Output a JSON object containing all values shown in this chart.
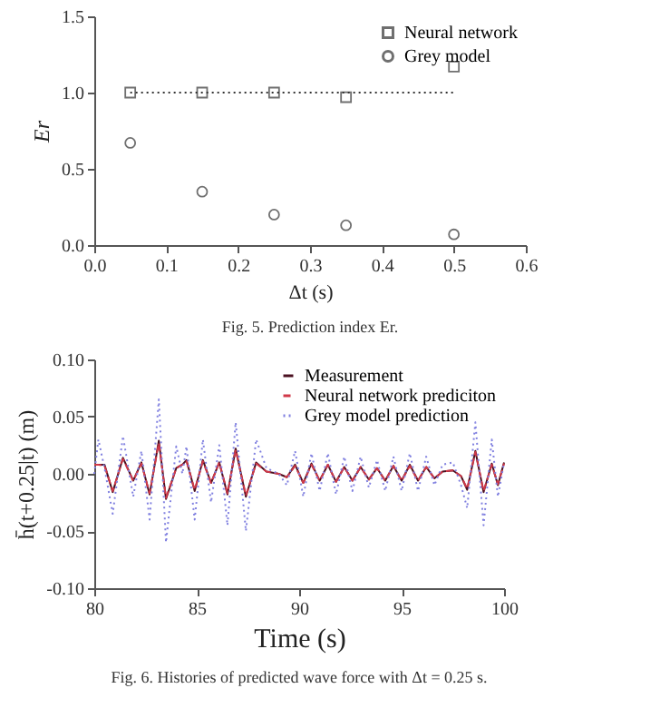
{
  "chart_data": [
    {
      "type": "scatter",
      "xlabel": "Δt (s)",
      "ylabel": "Er",
      "annotations": [
        "Fig. 5. Prediction index Er."
      ],
      "x": [
        0.05,
        0.15,
        0.25,
        0.35,
        0.5
      ],
      "xlim": [
        0,
        0.6
      ],
      "xticks": [
        {
          "value": 0,
          "label": "0.0"
        },
        0.1,
        0.2,
        0.3,
        0.4,
        0.5,
        0.6
      ],
      "ylim": [
        0,
        1.5
      ],
      "yticks": [
        {
          "value": 0,
          "label": "0.0"
        },
        0.5,
        {
          "value": 1,
          "label": "1.0"
        },
        1.5
      ],
      "legend": "top right",
      "series": [
        {
          "name": "Neural network",
          "color": "#333333",
          "marker": "square",
          "values": [
            1.0,
            1.0,
            1.0,
            0.97,
            1.17
          ]
        },
        {
          "name": "Grey model",
          "color": "#333333",
          "marker": "circle",
          "values": [
            0.67,
            0.35,
            0.2,
            0.13,
            0.07
          ]
        },
        {
          "type": "line",
          "color": "#333333",
          "line_style": "dotted",
          "x": [
            0.05,
            0.5
          ],
          "values": [
            1.0,
            1.0
          ]
        }
      ]
    },
    {
      "type": "line",
      "xlabel": "Time (s)",
      "ylabel": "h̄(t+0.25|t) (m)",
      "annotations": [
        "Fig. 6. Histories of predicted wave force with Δt = 0.25 s."
      ],
      "x": [
        80.0,
        80.2,
        80.5,
        80.9,
        81.4,
        81.9,
        82.3,
        82.7,
        83.15,
        83.5,
        84.0,
        84.3,
        84.5,
        84.9,
        85.3,
        85.7,
        86.1,
        86.5,
        86.9,
        87.4,
        87.9,
        88.4,
        89.0,
        89.4,
        89.8,
        90.2,
        90.6,
        91.0,
        91.4,
        91.8,
        92.2,
        92.6,
        93.0,
        93.4,
        93.8,
        94.2,
        94.6,
        95.0,
        95.4,
        95.8,
        96.2,
        96.6,
        97.0,
        97.5,
        97.9,
        98.2,
        98.6,
        99.0,
        99.4,
        99.7,
        100.0
      ],
      "xlim": [
        80,
        100
      ],
      "xticks": [
        80,
        85,
        90,
        95,
        100
      ],
      "ylim": [
        -0.1,
        0.1
      ],
      "yticks": [
        {
          "value": -0.1,
          "label": "-0.10"
        },
        -0.05,
        {
          "value": 0,
          "label": "0.00"
        },
        0.05,
        {
          "value": 0.1,
          "label": "0.10"
        }
      ],
      "legend": "top right",
      "series": [
        {
          "name": "Measurement",
          "color": "#4a1020",
          "line_style": "solid",
          "values": [
            0.008,
            0.008,
            0.008,
            -0.016,
            0.014,
            -0.006,
            0.01,
            -0.018,
            0.029,
            -0.022,
            0.005,
            0.008,
            0.012,
            -0.015,
            0.012,
            -0.008,
            0.01,
            -0.018,
            0.022,
            -0.02,
            0.01,
            0.002,
            0.0,
            -0.003,
            0.008,
            -0.008,
            0.009,
            -0.006,
            0.008,
            -0.007,
            0.006,
            -0.006,
            0.006,
            -0.005,
            0.005,
            -0.006,
            0.007,
            -0.006,
            0.008,
            -0.006,
            0.006,
            -0.004,
            0.002,
            0.003,
            -0.002,
            -0.014,
            0.02,
            -0.016,
            0.009,
            -0.01,
            0.01
          ]
        },
        {
          "name": "Neural network prediciton",
          "color": "#d03848",
          "line_style": "dashed",
          "values": [
            0.008,
            0.008,
            0.007,
            -0.015,
            0.013,
            -0.006,
            0.009,
            -0.017,
            0.027,
            -0.021,
            0.005,
            0.008,
            0.011,
            -0.014,
            0.011,
            -0.008,
            0.01,
            -0.017,
            0.021,
            -0.019,
            0.009,
            0.002,
            0.0,
            -0.003,
            0.007,
            -0.008,
            0.008,
            -0.006,
            0.008,
            -0.007,
            0.006,
            -0.006,
            0.006,
            -0.005,
            0.005,
            -0.006,
            0.007,
            -0.006,
            0.007,
            -0.006,
            0.006,
            -0.004,
            0.002,
            0.003,
            -0.002,
            -0.013,
            0.019,
            -0.015,
            0.008,
            -0.009,
            0.009
          ]
        },
        {
          "name": "Grey model prediction",
          "color": "#8080e0",
          "line_style": "dotted",
          "values": [
            0.0,
            0.03,
            0.005,
            -0.035,
            0.033,
            -0.02,
            0.02,
            -0.04,
            0.065,
            -0.06,
            0.024,
            0.0,
            0.024,
            -0.04,
            0.03,
            -0.025,
            0.025,
            -0.045,
            0.045,
            -0.05,
            0.03,
            0.005,
            0.0,
            -0.01,
            0.02,
            -0.02,
            0.018,
            -0.015,
            0.018,
            -0.018,
            0.015,
            -0.015,
            0.015,
            -0.012,
            0.012,
            -0.015,
            0.015,
            -0.015,
            0.018,
            -0.015,
            0.015,
            -0.01,
            0.008,
            0.01,
            -0.01,
            -0.03,
            0.045,
            -0.045,
            0.03,
            -0.02,
            0.01
          ]
        }
      ]
    }
  ]
}
